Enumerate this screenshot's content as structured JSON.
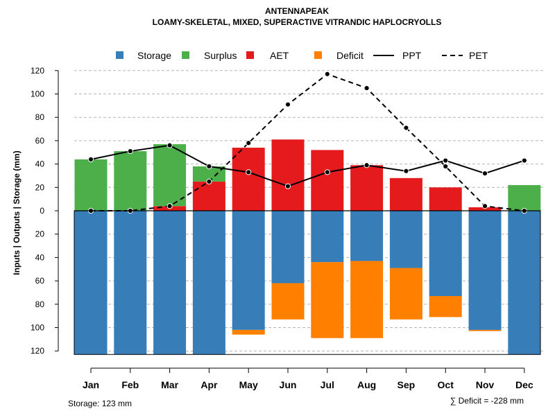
{
  "chart_data": {
    "type": "bar",
    "title": "ANTENNAPEAK",
    "subtitle": "LOAMY-SKELETAL, MIXED, SUPERACTIVE VITRANDIC HAPLOCRYOLLS",
    "ylabel": "Inputs | Outputs | Storage    (mm)",
    "ylim": [
      -123,
      120
    ],
    "yticks": [
      120,
      100,
      80,
      60,
      40,
      20,
      0,
      20,
      40,
      60,
      80,
      100,
      120
    ],
    "categories": [
      "Jan",
      "Feb",
      "Mar",
      "Apr",
      "May",
      "Jun",
      "Jul",
      "Aug",
      "Sep",
      "Oct",
      "Nov",
      "Dec"
    ],
    "legend": {
      "position": "top",
      "entries": [
        {
          "label": "Storage",
          "kind": "square",
          "color": "#377EB8"
        },
        {
          "label": "Surplus",
          "kind": "square",
          "color": "#4DAF4A"
        },
        {
          "label": "AET",
          "kind": "square",
          "color": "#E41A1C"
        },
        {
          "label": "Deficit",
          "kind": "square",
          "color": "#FF7F00"
        },
        {
          "label": "PPT",
          "kind": "solid-line",
          "color": "#000000"
        },
        {
          "label": "PET",
          "kind": "dashed-line",
          "color": "#000000"
        }
      ]
    },
    "colors": {
      "storage": "#377EB8",
      "surplus": "#4DAF4A",
      "aet": "#E41A1C",
      "deficit": "#FF7F00"
    },
    "series": [
      {
        "name": "AET",
        "values": [
          0,
          0,
          4,
          25,
          54,
          61,
          52,
          39,
          28,
          20,
          3,
          0
        ]
      },
      {
        "name": "Surplus",
        "values": [
          44,
          51,
          53,
          13,
          0,
          0,
          0,
          0,
          0,
          0,
          0,
          22
        ]
      },
      {
        "name": "Storage",
        "values": [
          123,
          123,
          123,
          123,
          102,
          62,
          44,
          43,
          49,
          73,
          102,
          123
        ]
      },
      {
        "name": "Deficit",
        "values": [
          0,
          0,
          0,
          0,
          4,
          31,
          65,
          66,
          44,
          18,
          1,
          0
        ]
      },
      {
        "name": "PPT",
        "values": [
          44,
          51,
          56,
          38,
          33,
          21,
          33,
          39,
          34,
          43,
          32,
          43
        ]
      },
      {
        "name": "PET",
        "values": [
          0,
          0,
          4,
          25,
          58,
          91,
          117,
          105,
          71,
          38,
          4,
          0
        ]
      }
    ],
    "footer_left": "Storage: 123 mm",
    "footer_right": "∑ Deficit = -228 mm"
  }
}
